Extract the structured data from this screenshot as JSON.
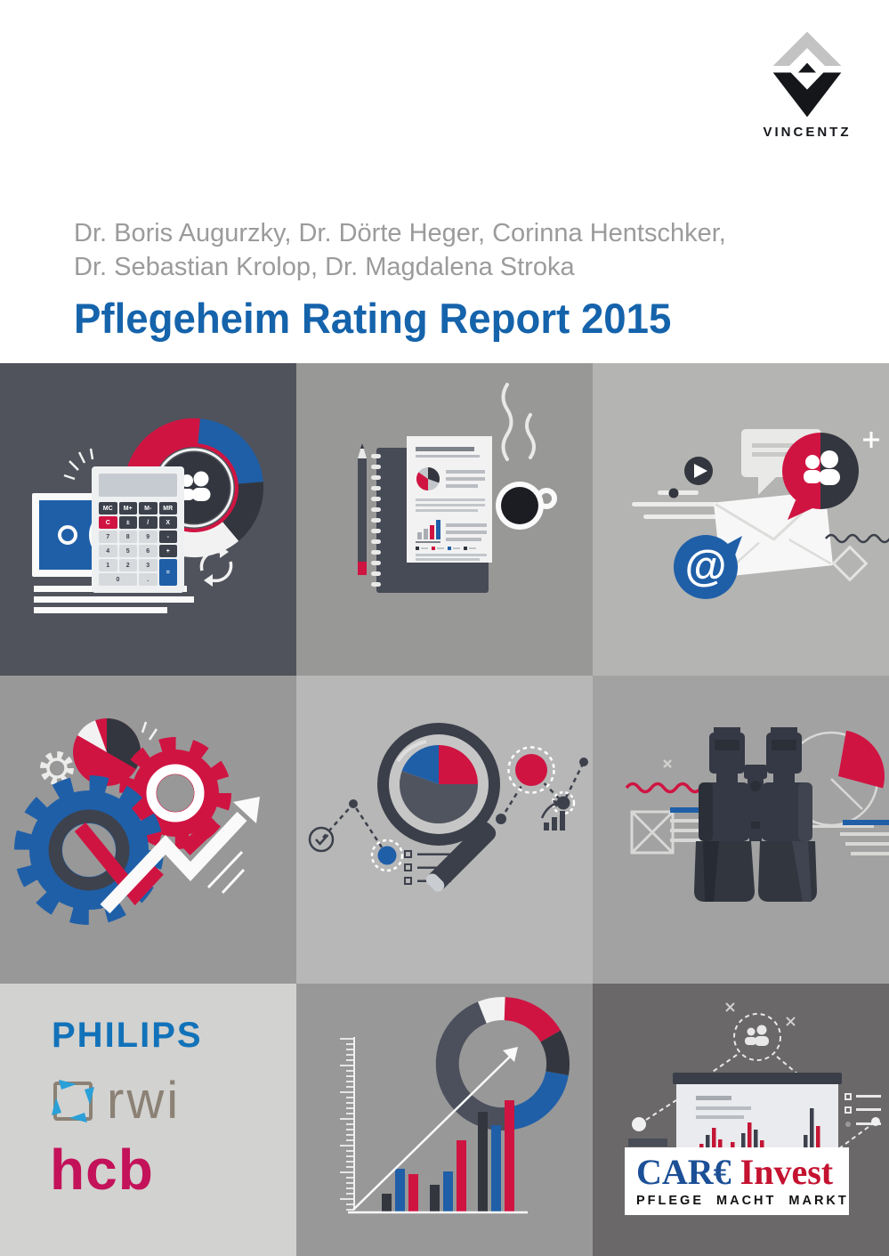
{
  "publisher": {
    "name": "VINCENTZ"
  },
  "header": {
    "authors_line1": "Dr. Boris Augurzky, Dr. Dörte Heger, Corinna Hentschker,",
    "authors_line2": "Dr. Sebastian Krolop, Dr. Magdalena Stroka",
    "title": "Pflegeheim Rating Report 2015"
  },
  "palette": {
    "red": "#d01442",
    "blue": "#1f5fa8",
    "dark_slate": "#3d414c",
    "title_blue": "#1563ab",
    "authors_gray": "#9b9b9b",
    "philips_blue": "#1272b9",
    "rwi_taupe": "#8b8175",
    "hcb_pink": "#c4125a",
    "care_blue": "#1b4f96",
    "care_red": "#c41230"
  },
  "tiles": {
    "finance": {
      "euro_symbol": "€",
      "calculator_buttons": [
        "MC",
        "M+",
        "M-",
        "MR",
        "C",
        "±",
        "/",
        "X",
        "7",
        "8",
        "9",
        "-",
        "4",
        "5",
        "6",
        "+",
        "1",
        "2",
        "3",
        "=",
        "0",
        "."
      ]
    },
    "communication": {
      "at_symbol": "@"
    }
  },
  "logos": {
    "philips": "PHILIPS",
    "rwi": "rwi",
    "hcb": "hcb",
    "care_invest": {
      "wordmark_blue": "CAR€",
      "wordmark_red": "Invest",
      "tagline": "PFLEGE MACHT MARKT"
    }
  }
}
